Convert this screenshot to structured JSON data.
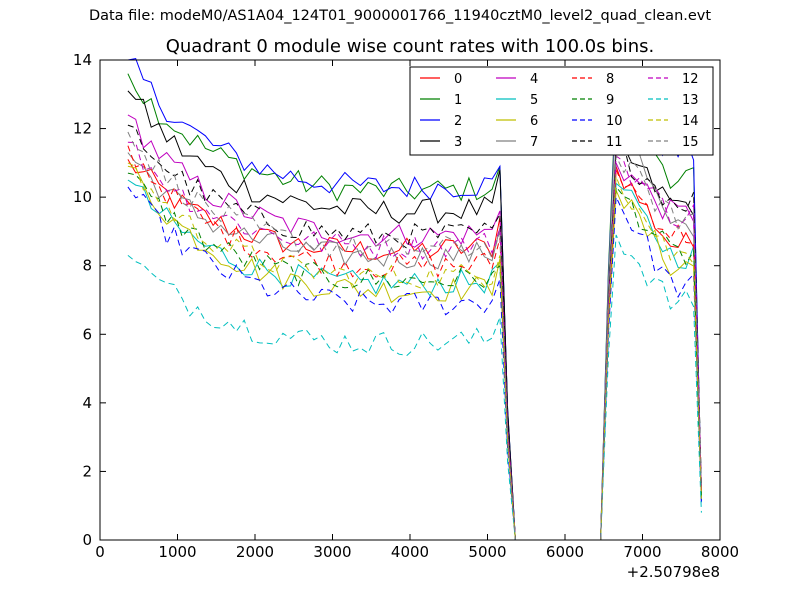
{
  "figure": {
    "suptitle": "Data file: modeM0/AS1A04_124T01_9000001766_11940cztM0_level2_quad_clean.evt"
  },
  "chart_data": {
    "type": "line",
    "title": "Quadrant 0 module wise count rates with 100.0s bins.",
    "xlabel": "",
    "ylabel": "",
    "x_offset_label": "+2.50798e8",
    "xlim": [
      0,
      8000
    ],
    "ylim": [
      0,
      14
    ],
    "x_ticks": [
      0,
      1000,
      2000,
      3000,
      4000,
      5000,
      6000,
      7000,
      8000
    ],
    "y_ticks": [
      0,
      2,
      4,
      6,
      8,
      10,
      12,
      14
    ],
    "grid": false,
    "legend": {
      "placement": "top-right",
      "columns": 4
    },
    "x": [
      360,
      460,
      560,
      660,
      760,
      860,
      960,
      1060,
      1160,
      1260,
      1360,
      1460,
      1560,
      1660,
      1760,
      1860,
      1960,
      2060,
      2160,
      2260,
      2360,
      2460,
      2560,
      2660,
      2760,
      2860,
      2960,
      3060,
      3160,
      3260,
      3360,
      3460,
      3560,
      3660,
      3760,
      3860,
      3960,
      4060,
      4160,
      4260,
      4360,
      4460,
      4560,
      4660,
      4760,
      4860,
      4960,
      5060,
      5160,
      5260,
      5360,
      5460,
      5560,
      5660,
      5760,
      5860,
      5960,
      6060,
      6160,
      6260,
      6360,
      6460,
      6560,
      6660,
      6760,
      6860,
      6960,
      7060,
      7160,
      7260,
      7360,
      7460,
      7560,
      7660,
      7760
    ],
    "series": [
      {
        "name": "0",
        "color": "#ff0000",
        "dash": "solid",
        "pre_start": 11.1,
        "pre_end": 8.5,
        "peak": 9.4,
        "post_peak": 10.9,
        "post_end": 8.6,
        "last": 1.5
      },
      {
        "name": "1",
        "color": "#008000",
        "dash": "solid",
        "pre_start": 13.6,
        "pre_end": 10.2,
        "peak": 10.9,
        "post_peak": 13.1,
        "post_end": 10.6,
        "last": 1.2
      },
      {
        "name": "2",
        "color": "#0000ff",
        "dash": "solid",
        "pre_start": 14.0,
        "pre_end": 10.3,
        "peak": 10.9,
        "post_peak": 12.8,
        "post_end": 11.3,
        "last": 1.1
      },
      {
        "name": "3",
        "color": "#000000",
        "dash": "solid",
        "pre_start": 13.1,
        "pre_end": 9.6,
        "peak": 10.8,
        "post_peak": 11.5,
        "post_end": 9.8,
        "last": 1.3
      },
      {
        "name": "4",
        "color": "#bf00bf",
        "dash": "solid",
        "pre_start": 12.4,
        "pre_end": 8.9,
        "peak": 9.6,
        "post_peak": 11.0,
        "post_end": 9.5,
        "last": 1.4
      },
      {
        "name": "5",
        "color": "#00bfbf",
        "dash": "solid",
        "pre_start": 10.5,
        "pre_end": 7.5,
        "peak": 8.1,
        "post_peak": 10.4,
        "post_end": 8.3,
        "last": 1.2
      },
      {
        "name": "6",
        "color": "#bfbf00",
        "dash": "solid",
        "pre_start": 10.9,
        "pre_end": 7.3,
        "peak": 8.2,
        "post_peak": 10.2,
        "post_end": 8.0,
        "last": 1.3
      },
      {
        "name": "7",
        "color": "#808080",
        "dash": "solid",
        "pre_start": 11.3,
        "pre_end": 8.3,
        "peak": 9.1,
        "post_peak": 12.6,
        "post_end": 9.0,
        "last": 1.5
      },
      {
        "name": "8",
        "color": "#ff0000",
        "dash": "dashed",
        "pre_start": 11.5,
        "pre_end": 8.0,
        "peak": 8.8,
        "post_peak": 10.8,
        "post_end": 8.9,
        "last": 1.4
      },
      {
        "name": "9",
        "color": "#008000",
        "dash": "dashed",
        "pre_start": 10.7,
        "pre_end": 7.6,
        "peak": 8.0,
        "post_peak": 10.3,
        "post_end": 8.3,
        "last": 1.2
      },
      {
        "name": "10",
        "color": "#0000ff",
        "dash": "dashed",
        "pre_start": 10.3,
        "pre_end": 6.9,
        "peak": 7.6,
        "post_peak": 10.0,
        "post_end": 7.4,
        "last": 1.1
      },
      {
        "name": "11",
        "color": "#000000",
        "dash": "dashed",
        "pre_start": 12.1,
        "pre_end": 8.9,
        "peak": 9.5,
        "post_peak": 11.4,
        "post_end": 9.9,
        "last": 1.6
      },
      {
        "name": "12",
        "color": "#bf00bf",
        "dash": "dashed",
        "pre_start": 11.6,
        "pre_end": 8.6,
        "peak": 9.1,
        "post_peak": 11.2,
        "post_end": 9.5,
        "last": 1.4
      },
      {
        "name": "13",
        "color": "#00bfbf",
        "dash": "dashed",
        "pre_start": 8.3,
        "pre_end": 5.8,
        "peak": 6.5,
        "post_peak": 8.9,
        "post_end": 6.9,
        "last": 0.8
      },
      {
        "name": "14",
        "color": "#bfbf00",
        "dash": "dashed",
        "pre_start": 11.0,
        "pre_end": 7.7,
        "peak": 8.3,
        "post_peak": 10.6,
        "post_end": 8.3,
        "last": 1.2
      },
      {
        "name": "15",
        "color": "#808080",
        "dash": "dashed",
        "pre_start": 11.9,
        "pre_end": 8.5,
        "peak": 9.0,
        "post_peak": 11.2,
        "post_end": 9.4,
        "last": 1.5
      }
    ]
  }
}
